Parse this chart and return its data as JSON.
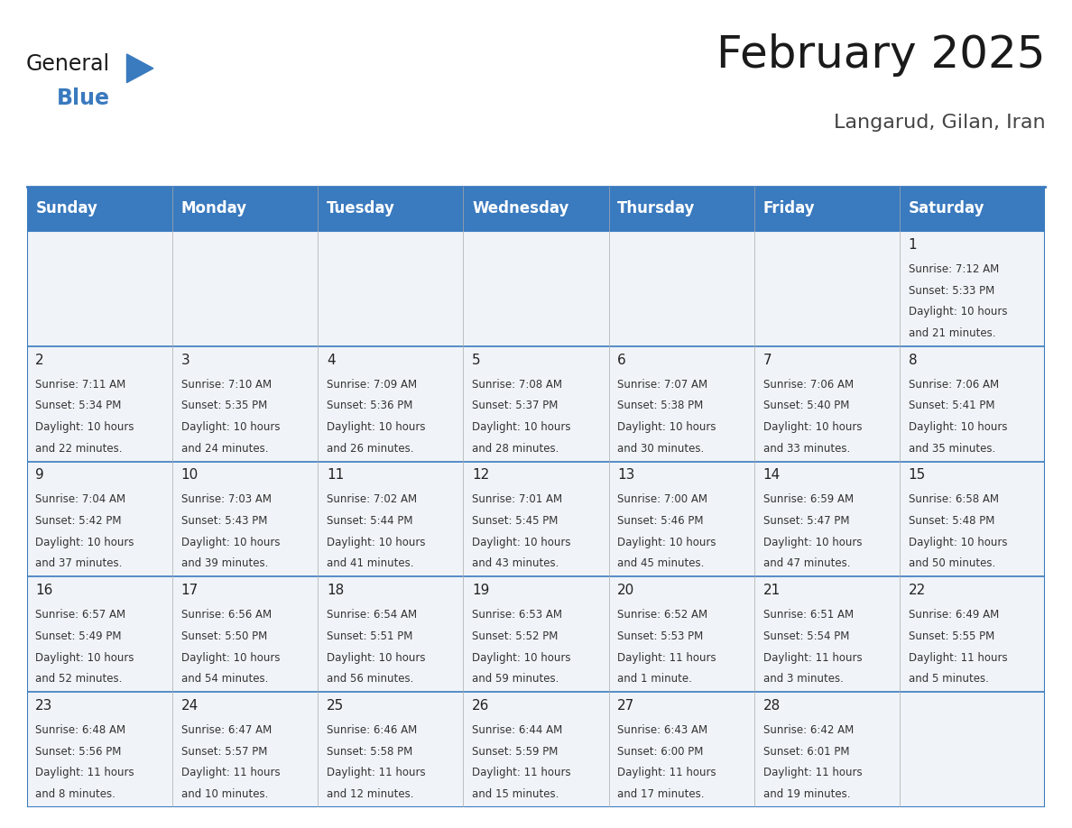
{
  "title": "February 2025",
  "subtitle": "Langarud, Gilan, Iran",
  "header_color": "#3a7abf",
  "header_text_color": "#ffffff",
  "cell_bg": "#f0f4f8",
  "border_color": "#3a7abf",
  "text_color": "#333333",
  "day_names": [
    "Sunday",
    "Monday",
    "Tuesday",
    "Wednesday",
    "Thursday",
    "Friday",
    "Saturday"
  ],
  "days": [
    {
      "day": 1,
      "col": 6,
      "row": 0,
      "sunrise": "7:12 AM",
      "sunset": "5:33 PM",
      "daylight": "10 hours",
      "daylight2": "and 21 minutes."
    },
    {
      "day": 2,
      "col": 0,
      "row": 1,
      "sunrise": "7:11 AM",
      "sunset": "5:34 PM",
      "daylight": "10 hours",
      "daylight2": "and 22 minutes."
    },
    {
      "day": 3,
      "col": 1,
      "row": 1,
      "sunrise": "7:10 AM",
      "sunset": "5:35 PM",
      "daylight": "10 hours",
      "daylight2": "and 24 minutes."
    },
    {
      "day": 4,
      "col": 2,
      "row": 1,
      "sunrise": "7:09 AM",
      "sunset": "5:36 PM",
      "daylight": "10 hours",
      "daylight2": "and 26 minutes."
    },
    {
      "day": 5,
      "col": 3,
      "row": 1,
      "sunrise": "7:08 AM",
      "sunset": "5:37 PM",
      "daylight": "10 hours",
      "daylight2": "and 28 minutes."
    },
    {
      "day": 6,
      "col": 4,
      "row": 1,
      "sunrise": "7:07 AM",
      "sunset": "5:38 PM",
      "daylight": "10 hours",
      "daylight2": "and 30 minutes."
    },
    {
      "day": 7,
      "col": 5,
      "row": 1,
      "sunrise": "7:06 AM",
      "sunset": "5:40 PM",
      "daylight": "10 hours",
      "daylight2": "and 33 minutes."
    },
    {
      "day": 8,
      "col": 6,
      "row": 1,
      "sunrise": "7:06 AM",
      "sunset": "5:41 PM",
      "daylight": "10 hours",
      "daylight2": "and 35 minutes."
    },
    {
      "day": 9,
      "col": 0,
      "row": 2,
      "sunrise": "7:04 AM",
      "sunset": "5:42 PM",
      "daylight": "10 hours",
      "daylight2": "and 37 minutes."
    },
    {
      "day": 10,
      "col": 1,
      "row": 2,
      "sunrise": "7:03 AM",
      "sunset": "5:43 PM",
      "daylight": "10 hours",
      "daylight2": "and 39 minutes."
    },
    {
      "day": 11,
      "col": 2,
      "row": 2,
      "sunrise": "7:02 AM",
      "sunset": "5:44 PM",
      "daylight": "10 hours",
      "daylight2": "and 41 minutes."
    },
    {
      "day": 12,
      "col": 3,
      "row": 2,
      "sunrise": "7:01 AM",
      "sunset": "5:45 PM",
      "daylight": "10 hours",
      "daylight2": "and 43 minutes."
    },
    {
      "day": 13,
      "col": 4,
      "row": 2,
      "sunrise": "7:00 AM",
      "sunset": "5:46 PM",
      "daylight": "10 hours",
      "daylight2": "and 45 minutes."
    },
    {
      "day": 14,
      "col": 5,
      "row": 2,
      "sunrise": "6:59 AM",
      "sunset": "5:47 PM",
      "daylight": "10 hours",
      "daylight2": "and 47 minutes."
    },
    {
      "day": 15,
      "col": 6,
      "row": 2,
      "sunrise": "6:58 AM",
      "sunset": "5:48 PM",
      "daylight": "10 hours",
      "daylight2": "and 50 minutes."
    },
    {
      "day": 16,
      "col": 0,
      "row": 3,
      "sunrise": "6:57 AM",
      "sunset": "5:49 PM",
      "daylight": "10 hours",
      "daylight2": "and 52 minutes."
    },
    {
      "day": 17,
      "col": 1,
      "row": 3,
      "sunrise": "6:56 AM",
      "sunset": "5:50 PM",
      "daylight": "10 hours",
      "daylight2": "and 54 minutes."
    },
    {
      "day": 18,
      "col": 2,
      "row": 3,
      "sunrise": "6:54 AM",
      "sunset": "5:51 PM",
      "daylight": "10 hours",
      "daylight2": "and 56 minutes."
    },
    {
      "day": 19,
      "col": 3,
      "row": 3,
      "sunrise": "6:53 AM",
      "sunset": "5:52 PM",
      "daylight": "10 hours",
      "daylight2": "and 59 minutes."
    },
    {
      "day": 20,
      "col": 4,
      "row": 3,
      "sunrise": "6:52 AM",
      "sunset": "5:53 PM",
      "daylight": "11 hours",
      "daylight2": "and 1 minute."
    },
    {
      "day": 21,
      "col": 5,
      "row": 3,
      "sunrise": "6:51 AM",
      "sunset": "5:54 PM",
      "daylight": "11 hours",
      "daylight2": "and 3 minutes."
    },
    {
      "day": 22,
      "col": 6,
      "row": 3,
      "sunrise": "6:49 AM",
      "sunset": "5:55 PM",
      "daylight": "11 hours",
      "daylight2": "and 5 minutes."
    },
    {
      "day": 23,
      "col": 0,
      "row": 4,
      "sunrise": "6:48 AM",
      "sunset": "5:56 PM",
      "daylight": "11 hours",
      "daylight2": "and 8 minutes."
    },
    {
      "day": 24,
      "col": 1,
      "row": 4,
      "sunrise": "6:47 AM",
      "sunset": "5:57 PM",
      "daylight": "11 hours",
      "daylight2": "and 10 minutes."
    },
    {
      "day": 25,
      "col": 2,
      "row": 4,
      "sunrise": "6:46 AM",
      "sunset": "5:58 PM",
      "daylight": "11 hours",
      "daylight2": "and 12 minutes."
    },
    {
      "day": 26,
      "col": 3,
      "row": 4,
      "sunrise": "6:44 AM",
      "sunset": "5:59 PM",
      "daylight": "11 hours",
      "daylight2": "and 15 minutes."
    },
    {
      "day": 27,
      "col": 4,
      "row": 4,
      "sunrise": "6:43 AM",
      "sunset": "6:00 PM",
      "daylight": "11 hours",
      "daylight2": "and 17 minutes."
    },
    {
      "day": 28,
      "col": 5,
      "row": 4,
      "sunrise": "6:42 AM",
      "sunset": "6:01 PM",
      "daylight": "11 hours",
      "daylight2": "and 19 minutes."
    }
  ],
  "logo_general_color": "#1a1a1a",
  "logo_blue_color": "#3a7abf",
  "logo_triangle_color": "#3a7abf",
  "title_fontsize": 36,
  "subtitle_fontsize": 16,
  "header_fontsize": 12,
  "day_num_fontsize": 11,
  "cell_text_fontsize": 8.5
}
